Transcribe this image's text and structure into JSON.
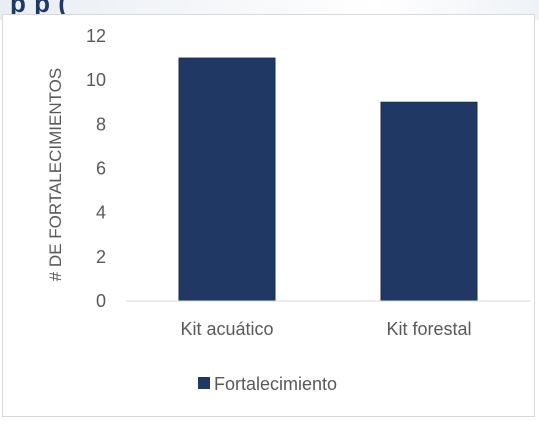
{
  "header_fragment": "p                         p (",
  "chart_data": {
    "type": "bar",
    "title": "",
    "xlabel": "",
    "ylabel": "# DE FORTALECIMIENTOS",
    "categories": [
      "Kit acuático",
      "Kit forestal"
    ],
    "series": [
      {
        "name": "Fortalecimiento",
        "values": [
          11,
          9
        ],
        "color": "#203864"
      }
    ],
    "ylim": [
      0,
      12
    ],
    "yticks": [
      "0",
      "2",
      "4",
      "6",
      "8",
      "10",
      "12"
    ],
    "grid": false,
    "legend_position": "bottom"
  },
  "colors": {
    "bar": "#203864",
    "axis_text": "#595959",
    "axis_line": "#d9d9d9"
  }
}
